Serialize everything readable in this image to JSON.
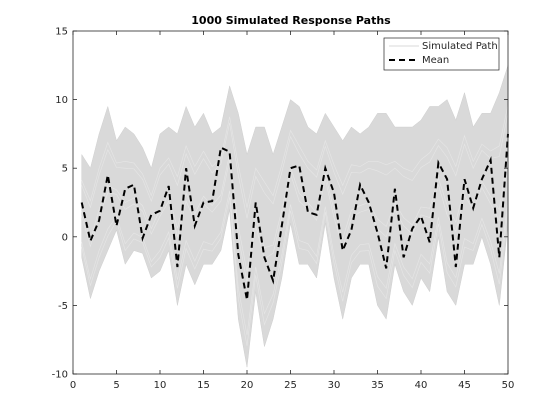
{
  "chart_data": {
    "type": "line",
    "title": "1000 Simulated Response Paths",
    "xlabel": "",
    "ylabel": "",
    "xlim": [
      0,
      50
    ],
    "ylim": [
      -10,
      15
    ],
    "x_ticks": [
      0,
      5,
      10,
      15,
      20,
      25,
      30,
      35,
      40,
      45,
      50
    ],
    "y_ticks": [
      -10,
      -5,
      0,
      5,
      10,
      15
    ],
    "grid": false,
    "legend_position": "top-right",
    "series": [
      {
        "name": "Simulated Path",
        "style": "band",
        "color": "#d9d9d9",
        "x": [
          1,
          2,
          3,
          4,
          5,
          6,
          7,
          8,
          9,
          10,
          11,
          12,
          13,
          14,
          15,
          16,
          17,
          18,
          19,
          20,
          21,
          22,
          23,
          24,
          25,
          26,
          27,
          28,
          29,
          30,
          31,
          32,
          33,
          34,
          35,
          36,
          37,
          38,
          39,
          40,
          41,
          42,
          43,
          44,
          45,
          46,
          47,
          48,
          49,
          50
        ],
        "lower": [
          -1.5,
          -4.5,
          -2.5,
          -1,
          0.5,
          -2,
          -1,
          -1.2,
          -3,
          -2.5,
          -1,
          -5,
          -2,
          -3.5,
          -2,
          -2,
          -1,
          2,
          -6,
          -9.5,
          -4,
          -8,
          -6,
          -3,
          1,
          -2,
          -2,
          -3,
          1,
          -3,
          -6,
          -3,
          -2,
          -2,
          -5,
          -6,
          -2,
          -4,
          -5,
          -3,
          -4,
          0,
          -4,
          -5,
          -2,
          -2,
          0,
          -2,
          -5,
          1
        ],
        "upper": [
          6,
          5,
          7.5,
          9.5,
          7,
          8,
          7.5,
          6.5,
          5,
          7.5,
          8,
          7.5,
          9.5,
          8,
          9,
          7.5,
          8,
          11,
          9,
          6,
          8,
          8,
          6,
          8,
          10,
          9.5,
          8,
          7.5,
          9,
          8,
          7,
          8,
          7.5,
          8,
          9,
          9,
          8,
          8,
          8,
          8.5,
          9.5,
          9.5,
          10,
          8.5,
          10.5,
          8,
          9,
          9,
          10.5,
          12.5
        ]
      },
      {
        "name": "Mean",
        "style": "dashed",
        "color": "#000000",
        "x": [
          1,
          2,
          3,
          4,
          5,
          6,
          7,
          8,
          9,
          10,
          11,
          12,
          13,
          14,
          15,
          16,
          17,
          18,
          19,
          20,
          21,
          22,
          23,
          24,
          25,
          26,
          27,
          28,
          29,
          30,
          31,
          32,
          33,
          34,
          35,
          36,
          37,
          38,
          39,
          40,
          41,
          42,
          43,
          44,
          45,
          46,
          47,
          48,
          49,
          50
        ],
        "values": [
          2.5,
          -0.3,
          1.2,
          4.5,
          0.8,
          3.5,
          3.8,
          -0.1,
          1.6,
          1.9,
          3.7,
          -2.2,
          5,
          0.8,
          2.5,
          2.6,
          6.5,
          6.2,
          -1.3,
          -4.6,
          2.5,
          -1.5,
          -3.2,
          0.8,
          5,
          5.2,
          1.8,
          1.6,
          5,
          3.2,
          -1,
          0.5,
          3.8,
          2.5,
          0.3,
          -2.3,
          3.5,
          -1.5,
          0.6,
          1.5,
          -0.4,
          5.4,
          4.2,
          -2.2,
          4.2,
          2.1,
          4.2,
          5.6,
          -1.5,
          7.5
        ]
      }
    ]
  }
}
